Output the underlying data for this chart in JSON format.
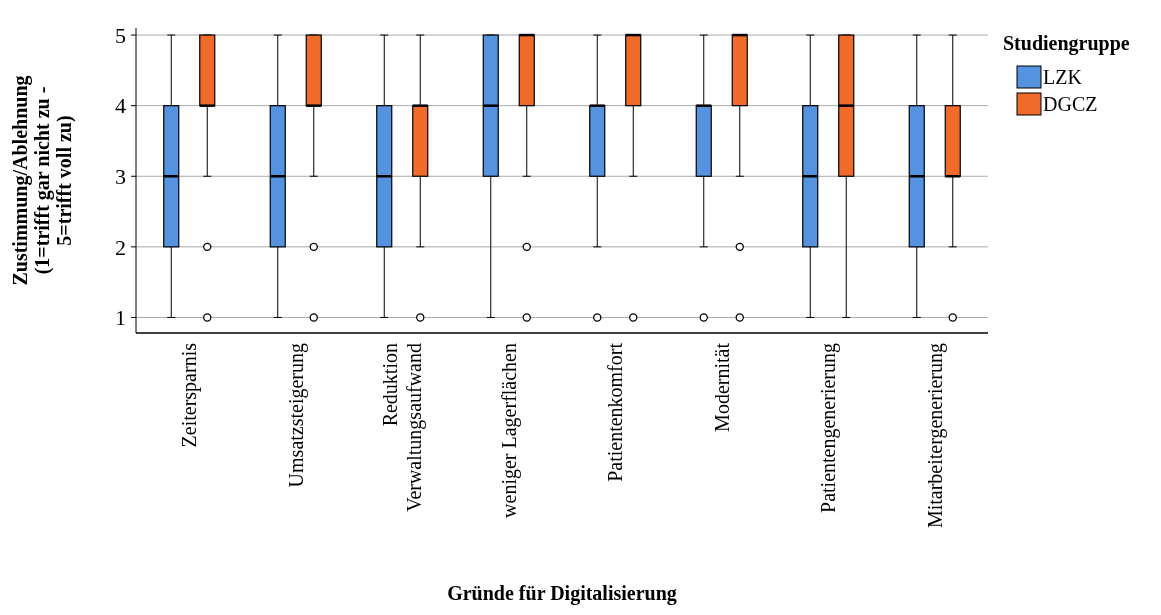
{
  "chart_data": {
    "type": "box",
    "xlabel": "Gründe für Digitalisierung",
    "ylabel": "Zustimmung/Ablehnung\n(1=trifft gar nicht zu -\n5=trifft voll zu)",
    "legend_title": "Studiengruppe",
    "legend": "top right",
    "grid": "y",
    "marker": "circle",
    "categories": [
      "Zeitersparnis",
      "Umsatzsteigerung",
      "Reduktion\nVerwaltungsaufwand",
      "weniger Lagerflächen",
      "Patientenkomfort",
      "Modernität",
      "Patientengenerierung",
      "Mitarbeitergenerierung"
    ],
    "ylim": [
      0.78,
      5.1
    ],
    "yticks": [
      1,
      2,
      3,
      4,
      5
    ],
    "series": [
      {
        "name": "LZK",
        "color": "#5592e0",
        "boxes": [
          {
            "low": 1,
            "q1": 2,
            "median": 3,
            "q3": 4,
            "high": 5
          },
          {
            "low": 1,
            "q1": 2,
            "median": 3,
            "q3": 4,
            "high": 5
          },
          {
            "low": 1,
            "q1": 2,
            "median": 3,
            "q3": 4,
            "high": 5
          },
          {
            "low": 1,
            "q1": 3,
            "median": 4,
            "q3": 5,
            "high": 5
          },
          {
            "low": 2,
            "q1": 3,
            "median": 4,
            "q3": 4,
            "high": 5,
            "outliers": [
              1
            ]
          },
          {
            "low": 2,
            "q1": 3,
            "median": 4,
            "q3": 4,
            "high": 5,
            "outliers": [
              1
            ]
          },
          {
            "low": 1,
            "q1": 2,
            "median": 3,
            "q3": 4,
            "high": 5
          },
          {
            "low": 1,
            "q1": 2,
            "median": 3,
            "q3": 4,
            "high": 5
          }
        ]
      },
      {
        "name": "DGCZ",
        "color": "#f06a2a",
        "boxes": [
          {
            "low": 3,
            "q1": 4,
            "median": 4,
            "q3": 5,
            "high": 5,
            "outliers": [
              2,
              1
            ]
          },
          {
            "low": 3,
            "q1": 4,
            "median": 4,
            "q3": 5,
            "high": 5,
            "outliers": [
              2,
              1
            ]
          },
          {
            "low": 2,
            "q1": 3,
            "median": 4,
            "q3": 4,
            "high": 5,
            "outliers": [
              1
            ]
          },
          {
            "low": 3,
            "q1": 4,
            "median": 5,
            "q3": 5,
            "high": 5,
            "outliers": [
              2,
              1
            ]
          },
          {
            "low": 3,
            "q1": 4,
            "median": 5,
            "q3": 5,
            "high": 5,
            "outliers": [
              1
            ]
          },
          {
            "low": 3,
            "q1": 4,
            "median": 5,
            "q3": 5,
            "high": 5,
            "outliers": [
              2,
              1
            ]
          },
          {
            "low": 1,
            "q1": 3,
            "median": 4,
            "q3": 5,
            "high": 5
          },
          {
            "low": 2,
            "q1": 3,
            "median": 3,
            "q3": 4,
            "high": 5,
            "outliers": [
              1
            ]
          }
        ]
      }
    ]
  }
}
